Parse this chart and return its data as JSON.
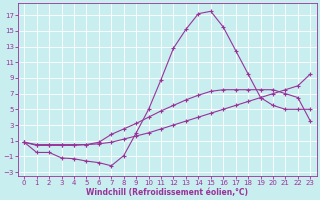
{
  "xlabel": "Windchill (Refroidissement éolien,°C)",
  "background_color": "#c8eef0",
  "grid_color": "#ffffff",
  "line_color": "#993399",
  "xlim": [
    -0.5,
    23.5
  ],
  "ylim": [
    -3.5,
    18.5
  ],
  "xticks": [
    0,
    1,
    2,
    3,
    4,
    5,
    6,
    7,
    8,
    9,
    10,
    11,
    12,
    13,
    14,
    15,
    16,
    17,
    18,
    19,
    20,
    21,
    22,
    23
  ],
  "yticks": [
    -3,
    -1,
    1,
    3,
    5,
    7,
    9,
    11,
    13,
    15,
    17
  ],
  "curve3_x": [
    0,
    1,
    2,
    3,
    4,
    5,
    6,
    7,
    8,
    9,
    10,
    11,
    12,
    13,
    14,
    15,
    16,
    17,
    18,
    19,
    20,
    21,
    22,
    23
  ],
  "curve3_y": [
    0.8,
    -0.5,
    -0.5,
    -1.2,
    -1.3,
    -1.6,
    -1.8,
    -2.2,
    -0.9,
    2.0,
    5.0,
    8.8,
    12.8,
    15.2,
    17.2,
    17.5,
    15.5,
    12.5,
    9.5,
    6.5,
    5.5,
    5.0,
    5.0,
    5.0
  ],
  "curve3_markers_x": [
    0,
    1,
    2,
    3,
    4,
    5,
    6,
    7,
    8,
    9,
    10,
    11,
    12,
    13,
    14,
    15,
    16,
    17,
    18,
    19,
    20,
    21,
    22,
    23
  ],
  "curve2_x": [
    0,
    1,
    2,
    3,
    4,
    5,
    6,
    7,
    8,
    9,
    10,
    11,
    12,
    13,
    14,
    15,
    16,
    17,
    18,
    19,
    20,
    21,
    22,
    23
  ],
  "curve2_y": [
    0.8,
    0.5,
    0.5,
    0.5,
    0.5,
    0.5,
    0.8,
    1.8,
    2.5,
    3.2,
    4.0,
    4.8,
    5.5,
    6.2,
    6.8,
    7.3,
    7.5,
    7.5,
    7.5,
    7.5,
    7.5,
    7.0,
    6.5,
    3.5
  ],
  "curve1_x": [
    0,
    1,
    2,
    3,
    4,
    5,
    6,
    7,
    8,
    9,
    10,
    11,
    12,
    13,
    14,
    15,
    16,
    17,
    18,
    19,
    20,
    21,
    22,
    23
  ],
  "curve1_y": [
    0.8,
    0.4,
    0.4,
    0.4,
    0.4,
    0.5,
    0.6,
    0.8,
    1.2,
    1.6,
    2.0,
    2.5,
    3.0,
    3.5,
    4.0,
    4.5,
    5.0,
    5.5,
    6.0,
    6.5,
    7.0,
    7.5,
    8.0,
    9.5
  ],
  "marker_style": "+",
  "markersize": 3,
  "linewidth": 0.8,
  "xlabel_fontsize": 5.5,
  "tick_fontsize": 5
}
